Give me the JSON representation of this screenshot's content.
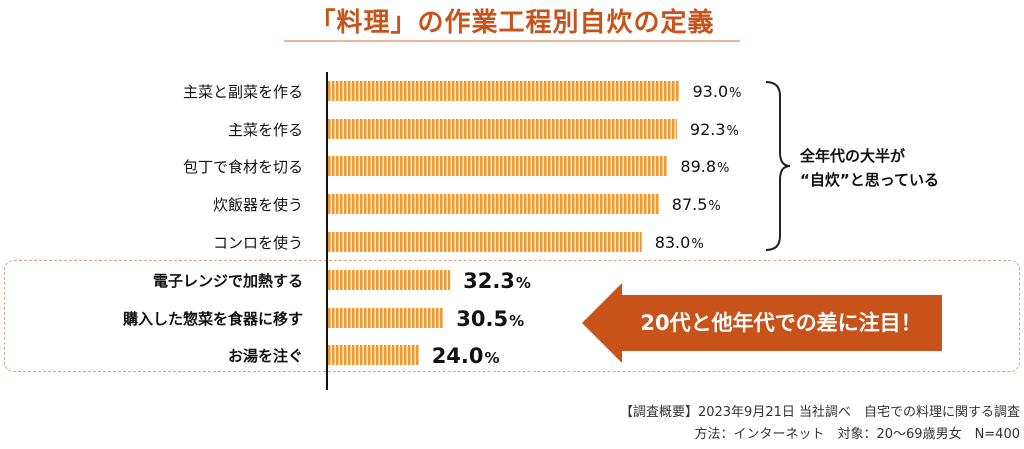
{
  "title": "「料理」の作業工程別自炊の定義",
  "chart_data": {
    "type": "bar",
    "orientation": "horizontal",
    "xlim": [
      0,
      100
    ],
    "unit": "%",
    "categories": [
      "主菜と副菜を作る",
      "主菜を作る",
      "包丁で食材を切る",
      "炊飯器を使う",
      "コンロを使う",
      "電子レンジで加熱する",
      "購入した惣菜を食器に移す",
      "お湯を注ぐ"
    ],
    "values": [
      93.0,
      92.3,
      89.8,
      87.5,
      83.0,
      32.3,
      30.5,
      24.0
    ],
    "value_labels": [
      "93.0",
      "92.3",
      "89.8",
      "87.5",
      "83.0",
      "32.3",
      "30.5",
      "24.0"
    ],
    "highlighted": [
      false,
      false,
      false,
      false,
      false,
      true,
      true,
      true
    ],
    "bar_color": "#ee9a33",
    "stripe_color": "#ffffff"
  },
  "annotations": {
    "brace_note": [
      "全年代の大半が",
      "“自炊”と思っている"
    ],
    "callout": "20代と他年代での差に注目！",
    "callout_color": "#c8531a"
  },
  "footnote": {
    "line1": "【調査概要】2023年9月21日 当社調べ　自宅での料理に関する調査",
    "line2": "方法：インターネット　対象：20～69歳男女　N=400"
  }
}
